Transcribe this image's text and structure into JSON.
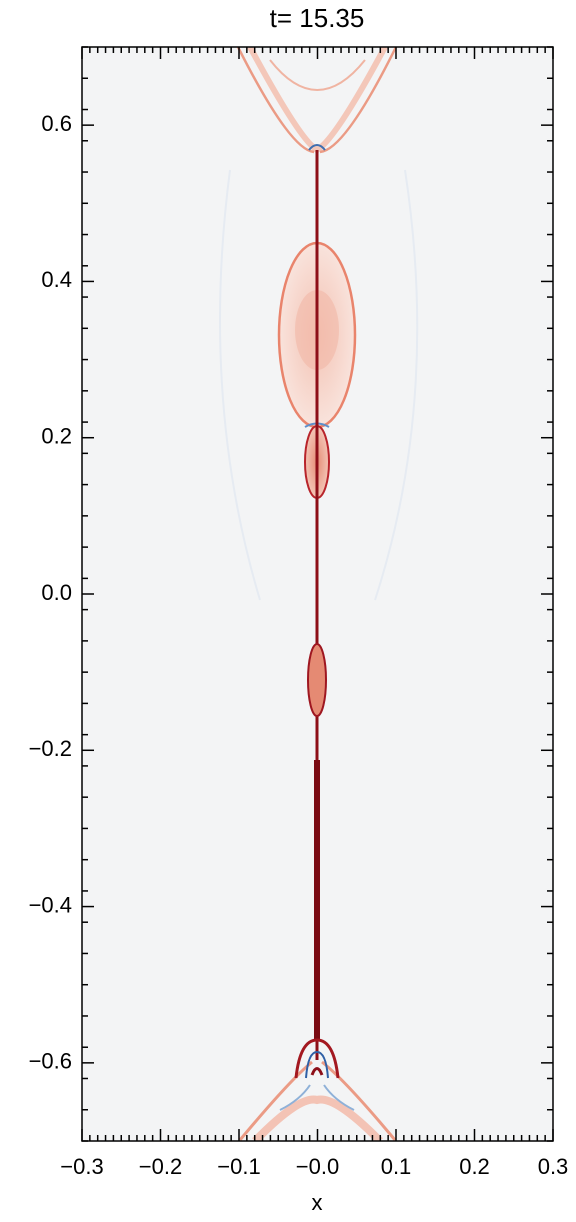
{
  "chart_data": {
    "type": "field",
    "title": "t=   15.35",
    "x_label": "x",
    "xlim": [
      -0.3,
      0.3
    ],
    "xticks": [
      {
        "value": -0.3,
        "label": "−0.3"
      },
      {
        "value": -0.2,
        "label": "−0.2"
      },
      {
        "value": -0.1,
        "label": "−0.1"
      },
      {
        "value": 0,
        "label": "−0.0"
      },
      0.1,
      0.2,
      0.3
    ],
    "ylim": [
      -0.7,
      0.7
    ],
    "yticks": [
      {
        "value": -0.6,
        "label": "−0.6"
      },
      {
        "value": -0.4,
        "label": "−0.4"
      },
      {
        "value": -0.2,
        "label": "−0.2"
      },
      {
        "value": 0,
        "label": "0.0"
      },
      0.2,
      0.4,
      0.6
    ]
  }
}
